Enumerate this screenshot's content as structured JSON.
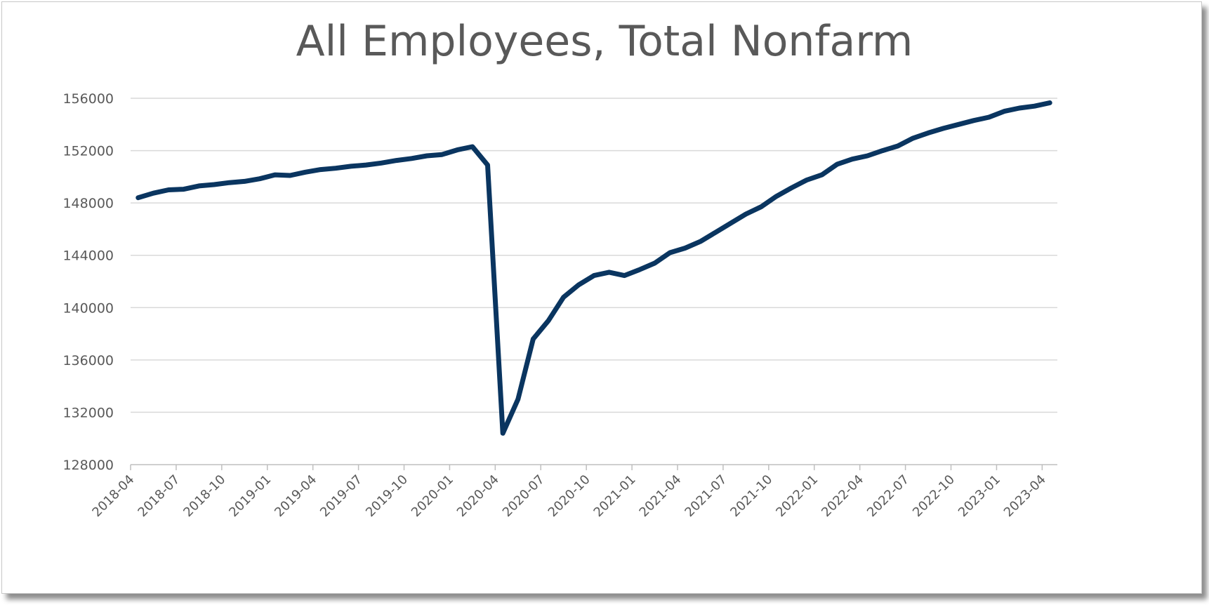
{
  "chart_data": {
    "type": "line",
    "title": "All Employees, Total Nonfarm",
    "xlabel": "",
    "ylabel": "",
    "ylim": [
      128000,
      156000
    ],
    "yticks": [
      "156000",
      "152000",
      "148000",
      "144000",
      "140000",
      "136000",
      "132000",
      "128000"
    ],
    "xticks": [
      "2018-04",
      "2018-07",
      "2018-10",
      "2019-01",
      "2019-04",
      "2019-07",
      "2019-10",
      "2020-01",
      "2020-04",
      "2020-07",
      "2020-10",
      "2021-01",
      "2021-04",
      "2021-07",
      "2021-10",
      "2022-01",
      "2022-04",
      "2022-07",
      "2022-10",
      "2023-01",
      "2023-04"
    ],
    "grid": true,
    "legend": "none",
    "line_color": "#0a3560",
    "x": [
      "2018-04",
      "2018-05",
      "2018-06",
      "2018-07",
      "2018-08",
      "2018-09",
      "2018-10",
      "2018-11",
      "2018-12",
      "2019-01",
      "2019-02",
      "2019-03",
      "2019-04",
      "2019-05",
      "2019-06",
      "2019-07",
      "2019-08",
      "2019-09",
      "2019-10",
      "2019-11",
      "2019-12",
      "2020-01",
      "2020-02",
      "2020-03",
      "2020-04",
      "2020-05",
      "2020-06",
      "2020-07",
      "2020-08",
      "2020-09",
      "2020-10",
      "2020-11",
      "2020-12",
      "2021-01",
      "2021-02",
      "2021-03",
      "2021-04",
      "2021-05",
      "2021-06",
      "2021-07",
      "2021-08",
      "2021-09",
      "2021-10",
      "2021-11",
      "2021-12",
      "2022-01",
      "2022-02",
      "2022-03",
      "2022-04",
      "2022-05",
      "2022-06",
      "2022-07",
      "2022-08",
      "2022-09",
      "2022-10",
      "2022-11",
      "2022-12",
      "2023-01",
      "2023-02",
      "2023-03",
      "2023-04"
    ],
    "series": [
      {
        "values": [
          148400,
          148750,
          149000,
          149050,
          149300,
          149400,
          149550,
          149650,
          149850,
          150150,
          150100,
          150350,
          150550,
          150650,
          150800,
          150900,
          151050,
          151250,
          151400,
          151600,
          151700,
          152050,
          152300,
          150900,
          130400,
          133000,
          137600,
          139000,
          140800,
          141750,
          142450,
          142700,
          142450,
          142900,
          143400,
          144200,
          144550,
          145050,
          145750,
          146450,
          147150,
          147700,
          148500,
          149150,
          149750,
          150150,
          150950,
          151350,
          151600,
          152000,
          152350,
          152950,
          153350,
          153700,
          154000,
          154300,
          154550,
          155000,
          155250,
          155400,
          155650
        ]
      }
    ]
  }
}
